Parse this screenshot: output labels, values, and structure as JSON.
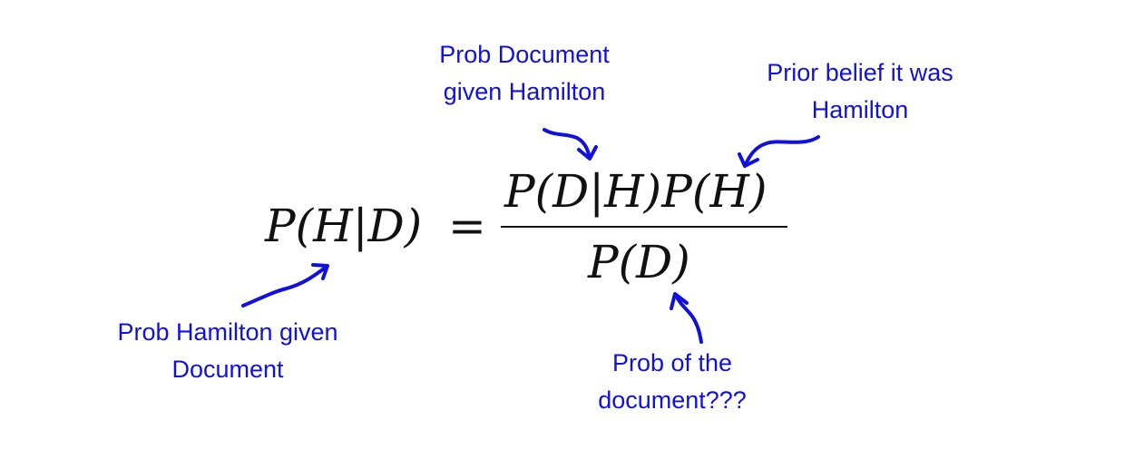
{
  "equation": {
    "lhs": "P(H|D)",
    "equals": "=",
    "numerator": "P(D|H)P(H)",
    "denominator": "P(D)"
  },
  "annotations": {
    "likelihood": {
      "line1": "Prob Document",
      "line2": "given Hamilton"
    },
    "prior": {
      "line1": "Prior belief it was",
      "line2": "Hamilton"
    },
    "posterior": {
      "line1": "Prob Hamilton given",
      "line2": "Document"
    },
    "evidence": {
      "line1": "Prob of the",
      "line2": "document???"
    }
  },
  "colors": {
    "annotation": "#1111dd",
    "equation": "#111111",
    "background": "#ffffff"
  }
}
